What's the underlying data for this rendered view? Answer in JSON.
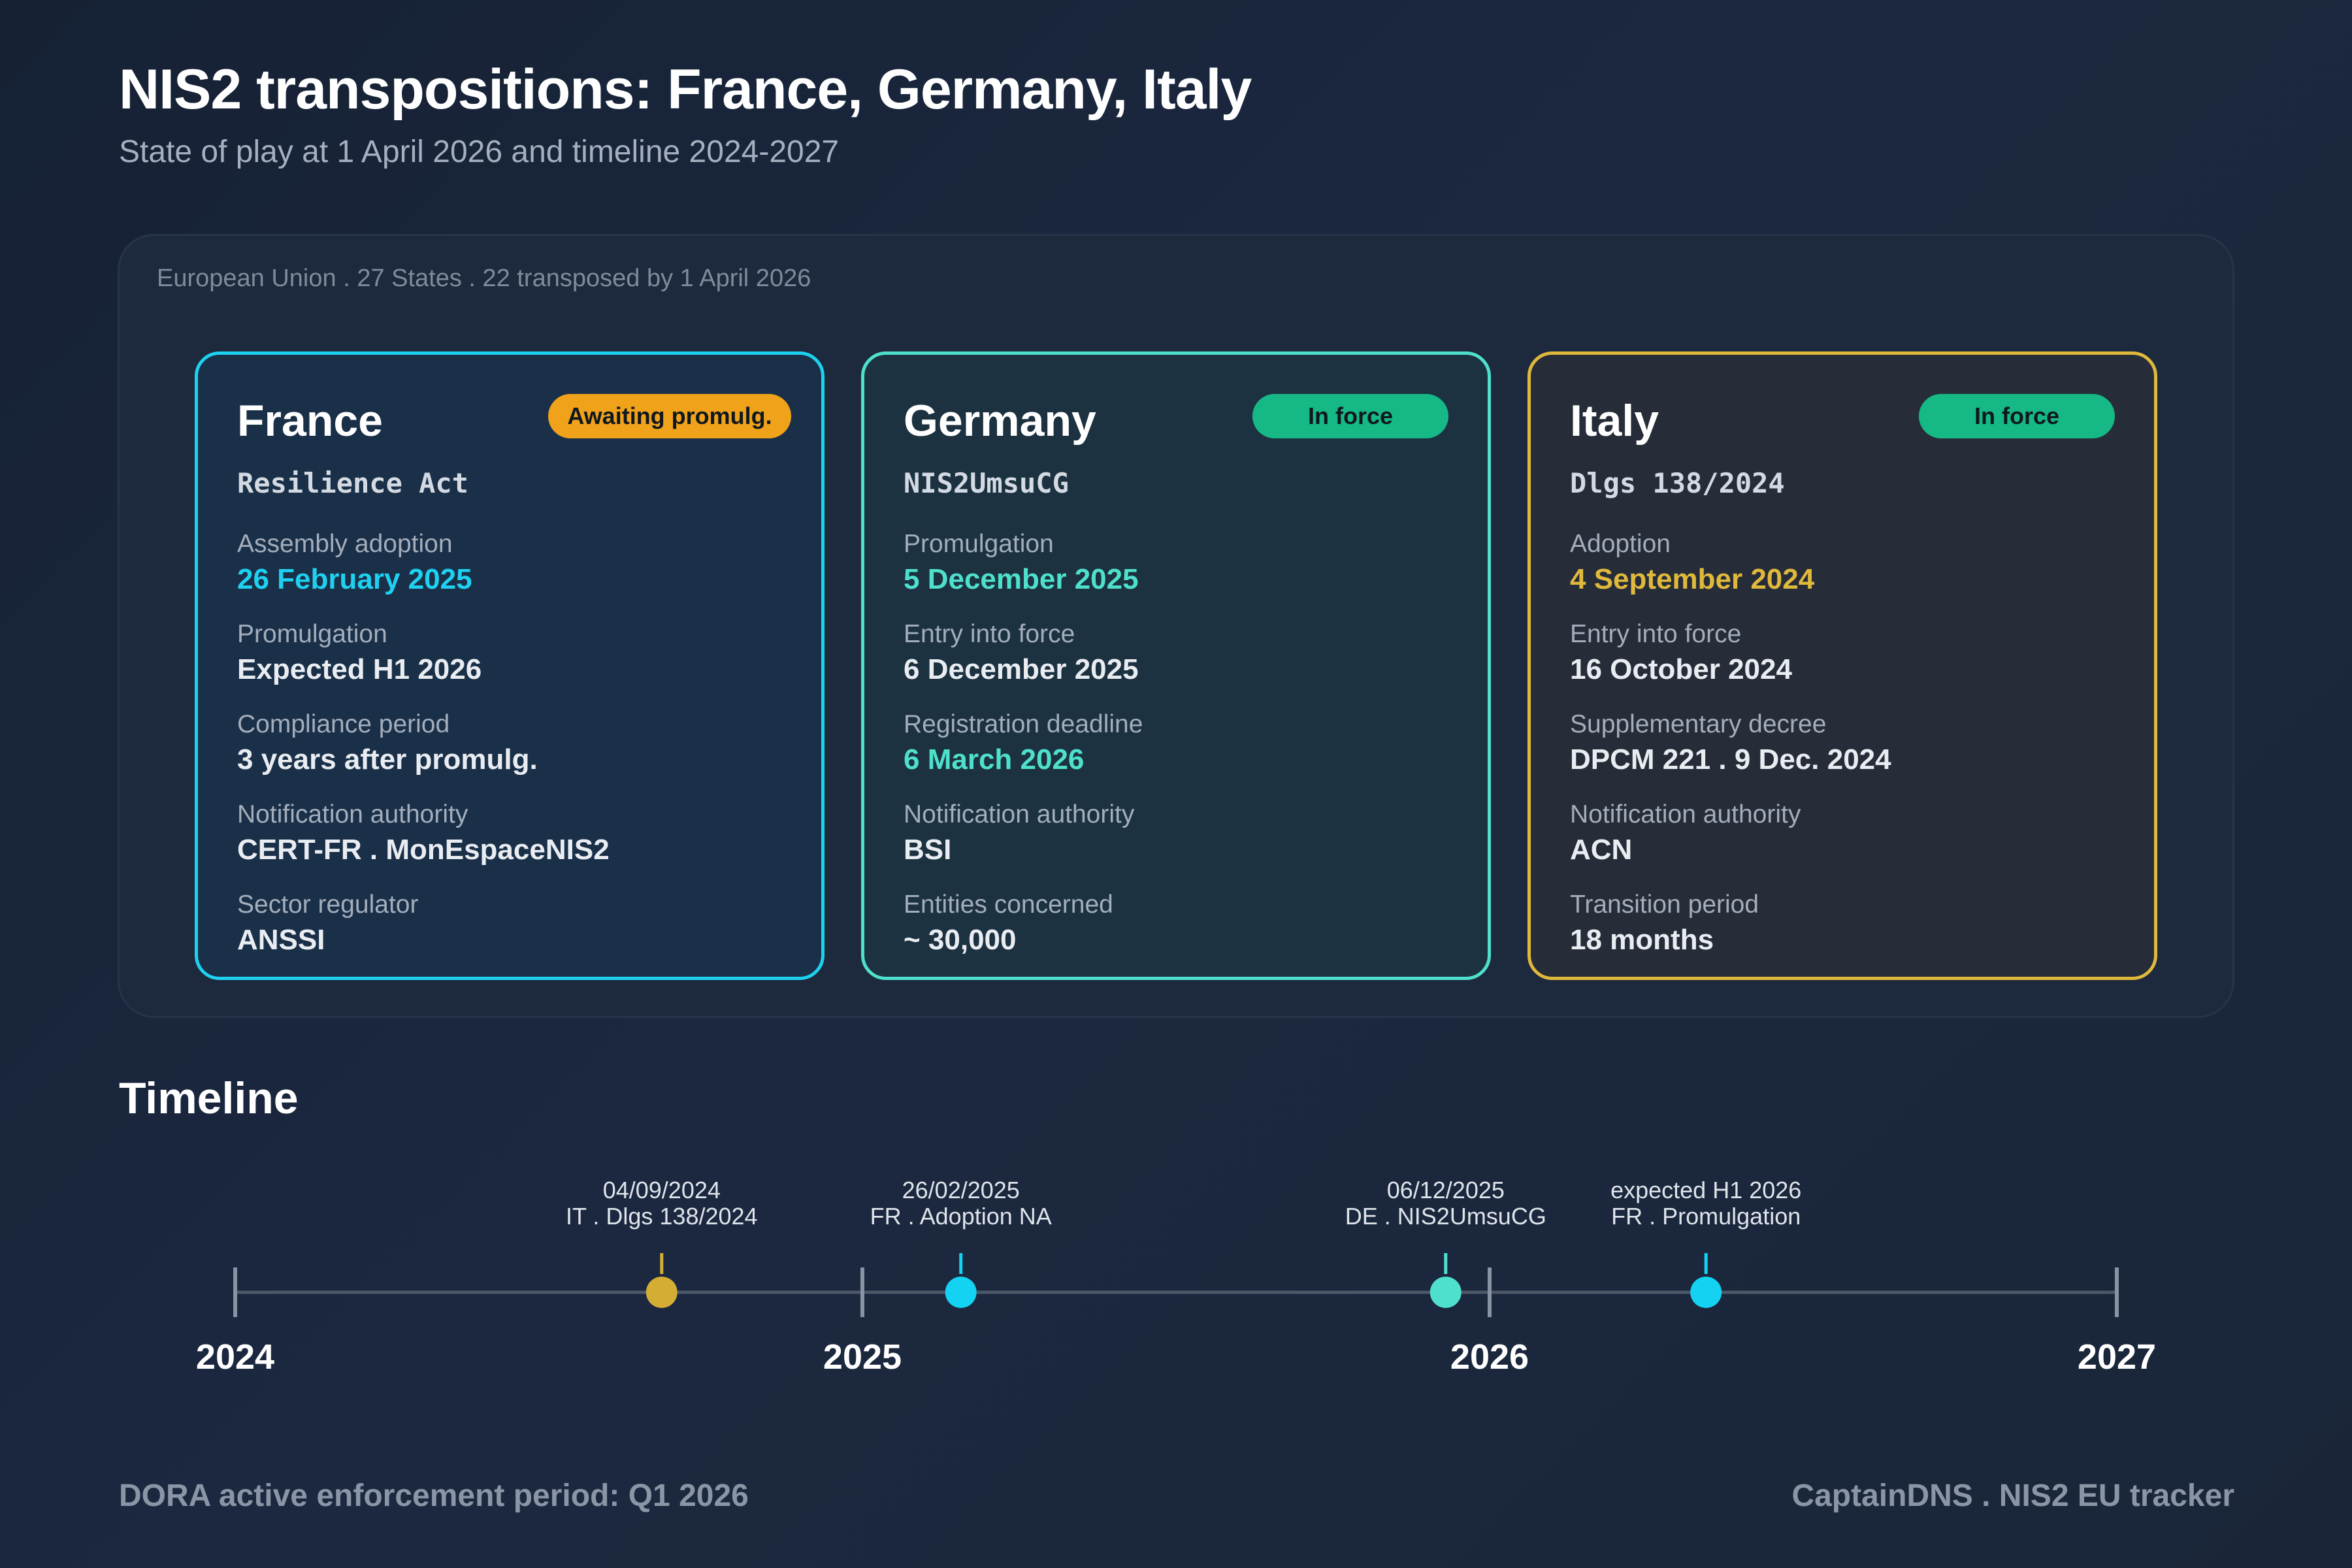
{
  "header": {
    "title": "NIS2 transpositions: France, Germany, Italy",
    "subtitle": "State of play at 1 April 2026 and timeline 2024-2027"
  },
  "panel": {
    "caption": "European Union . 27 States . 22 transposed by 1 April 2026"
  },
  "cards": [
    {
      "country": "France",
      "badge": "Awaiting promulg.",
      "badge_color": "#f0a21a",
      "law": "Resilience Act",
      "accent": "#1fd1f0",
      "fields": [
        {
          "label": "Assembly adoption",
          "value": "26 February 2025"
        },
        {
          "label": "Promulgation",
          "value": "Expected H1 2026"
        },
        {
          "label": "Compliance period",
          "value": "3 years after promulg."
        },
        {
          "label": "Notification authority",
          "value": "CERT-FR . MonEspaceNIS2"
        },
        {
          "label": "Sector regulator",
          "value": "ANSSI"
        }
      ]
    },
    {
      "country": "Germany",
      "badge": "In force",
      "badge_color": "#16b986",
      "law": "NIS2UmsuCG",
      "accent": "#4fe0cd",
      "fields": [
        {
          "label": "Promulgation",
          "value": "5 December 2025"
        },
        {
          "label": "Entry into force",
          "value": "6 December 2025"
        },
        {
          "label": "Registration deadline",
          "value": "6 March 2026"
        },
        {
          "label": "Notification authority",
          "value": "BSI"
        },
        {
          "label": "Entities concerned",
          "value": "~ 30,000"
        }
      ]
    },
    {
      "country": "Italy",
      "badge": "In force",
      "badge_color": "#16b986",
      "law": "Dlgs 138/2024",
      "accent": "#e0b93c",
      "fields": [
        {
          "label": "Adoption",
          "value": "4 September 2024"
        },
        {
          "label": "Entry into force",
          "value": "16 October 2024"
        },
        {
          "label": "Supplementary decree",
          "value": "DPCM 221 . 9 Dec. 2024"
        },
        {
          "label": "Notification authority",
          "value": "ACN"
        },
        {
          "label": "Transition period",
          "value": "18 months"
        }
      ]
    }
  ],
  "timeline": {
    "title": "Timeline",
    "years": [
      "2024",
      "2025",
      "2026",
      "2027"
    ],
    "events": [
      {
        "date": "04/09/2024",
        "label": "IT . Dlgs 138/2024",
        "t": 2024.68,
        "color": "#d4ad35"
      },
      {
        "date": "26/02/2025",
        "label": "FR . Adoption NA",
        "t": 2025.157,
        "color": "#13d2f2"
      },
      {
        "date": "06/12/2025",
        "label": "DE . NIS2UmsuCG",
        "t": 2025.93,
        "color": "#4fe0cd"
      },
      {
        "date": "expected H1 2026",
        "label": "FR . Promulgation",
        "t": 2026.345,
        "color": "#13d2f2"
      }
    ]
  },
  "footer": {
    "left": "DORA active enforcement period: Q1 2026",
    "right": "CaptainDNS . NIS2 EU tracker"
  }
}
